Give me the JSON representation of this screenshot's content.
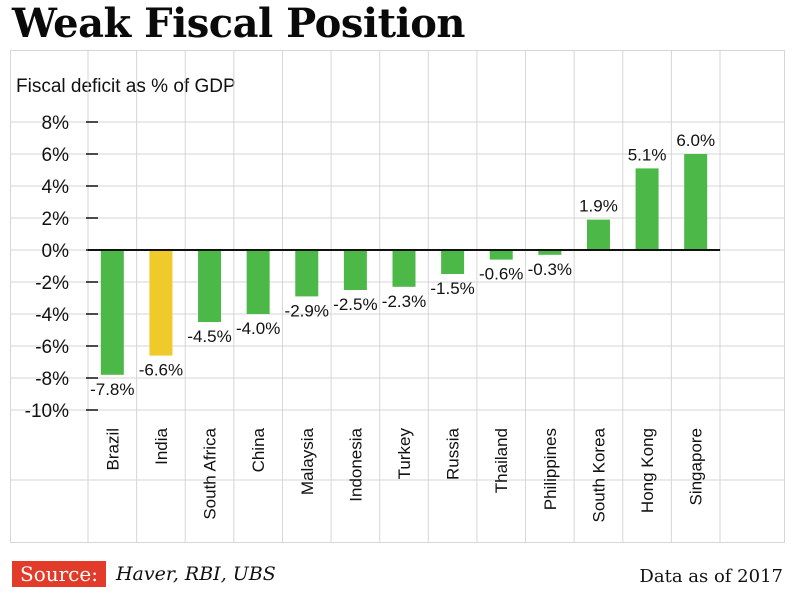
{
  "title": "Weak Fiscal Position",
  "footer": {
    "source_label": "Source:",
    "source_text": "Haver, RBI, UBS",
    "note": "Data as of 2017"
  },
  "colors": {
    "bar": "#4cb848",
    "highlight": "#f0c92a",
    "grid": "#d6d6d6",
    "source_badge": "#e23b2a"
  },
  "chart_data": {
    "type": "bar",
    "title": "Weak Fiscal Position",
    "ylabel": "Fiscal deficit as % of GDP",
    "xlabel": "",
    "categories": [
      "Brazil",
      "India",
      "South Africa",
      "China",
      "Malaysia",
      "Indonesia",
      "Turkey",
      "Russia",
      "Thailand",
      "Philippines",
      "South Korea",
      "Hong Kong",
      "Singapore"
    ],
    "values": [
      -7.8,
      -6.6,
      -4.5,
      -4.0,
      -2.9,
      -2.5,
      -2.3,
      -1.5,
      -0.6,
      -0.3,
      1.9,
      5.1,
      6.0
    ],
    "value_labels": [
      "-7.8%",
      "-6.6%",
      "-4.5%",
      "-4.0%",
      "-2.9%",
      "-2.5%",
      "-2.3%",
      "-1.5%",
      "-0.6%",
      "-0.3%",
      "1.9%",
      "5.1%",
      "6.0%"
    ],
    "highlight_category": "India",
    "ylim": [
      -10,
      8
    ],
    "yticks": [
      8,
      6,
      4,
      2,
      0,
      -2,
      -4,
      -6,
      -8,
      -10
    ],
    "ytick_labels": [
      "8%",
      "6%",
      "4%",
      "2%",
      "0%",
      "-2%",
      "-4%",
      "-6%",
      "-8%",
      "-10%"
    ],
    "grid": true,
    "legend": "none"
  }
}
